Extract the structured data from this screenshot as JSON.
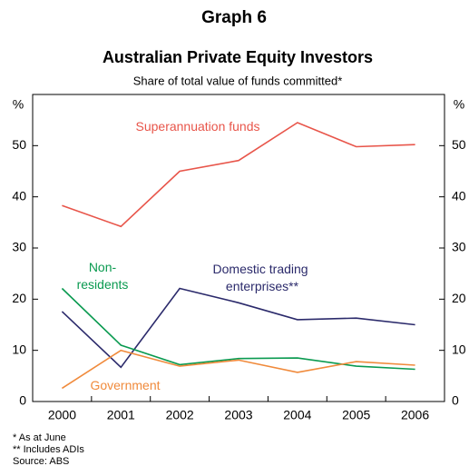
{
  "chart_data": {
    "type": "line",
    "title": "Graph 6",
    "subtitle": "Australian Private Equity Investors",
    "description": "Share of total value of funds committed*",
    "ylabel": "%",
    "y2label": "%",
    "categories": [
      "2000",
      "2001",
      "2002",
      "2003",
      "2004",
      "2005",
      "2006"
    ],
    "series": [
      {
        "name": "Superannuation funds",
        "color": "#e8554a",
        "values": [
          38.3,
          34.2,
          45.0,
          47.1,
          54.5,
          49.8,
          50.2
        ]
      },
      {
        "name": "Domestic trading enterprises**",
        "color": "#2b2a6b",
        "values": [
          17.6,
          6.7,
          22.1,
          19.3,
          16.0,
          16.3,
          15.0
        ]
      },
      {
        "name": "Non-residents",
        "color": "#0a9a50",
        "values": [
          22.1,
          11.0,
          7.2,
          8.4,
          8.5,
          6.9,
          6.3
        ]
      },
      {
        "name": "Government",
        "color": "#f08a3b",
        "values": [
          2.6,
          10.0,
          6.9,
          8.1,
          5.7,
          7.8,
          7.1
        ]
      }
    ],
    "ylim": [
      0,
      60
    ],
    "yticks": [
      0,
      10,
      20,
      30,
      40,
      50
    ],
    "y2lim": [
      0,
      60
    ],
    "y2ticks": [
      0,
      10,
      20,
      30,
      40,
      50
    ],
    "notes": [
      "*   As at June",
      "** Includes ADIs",
      "Source: ABS"
    ]
  }
}
